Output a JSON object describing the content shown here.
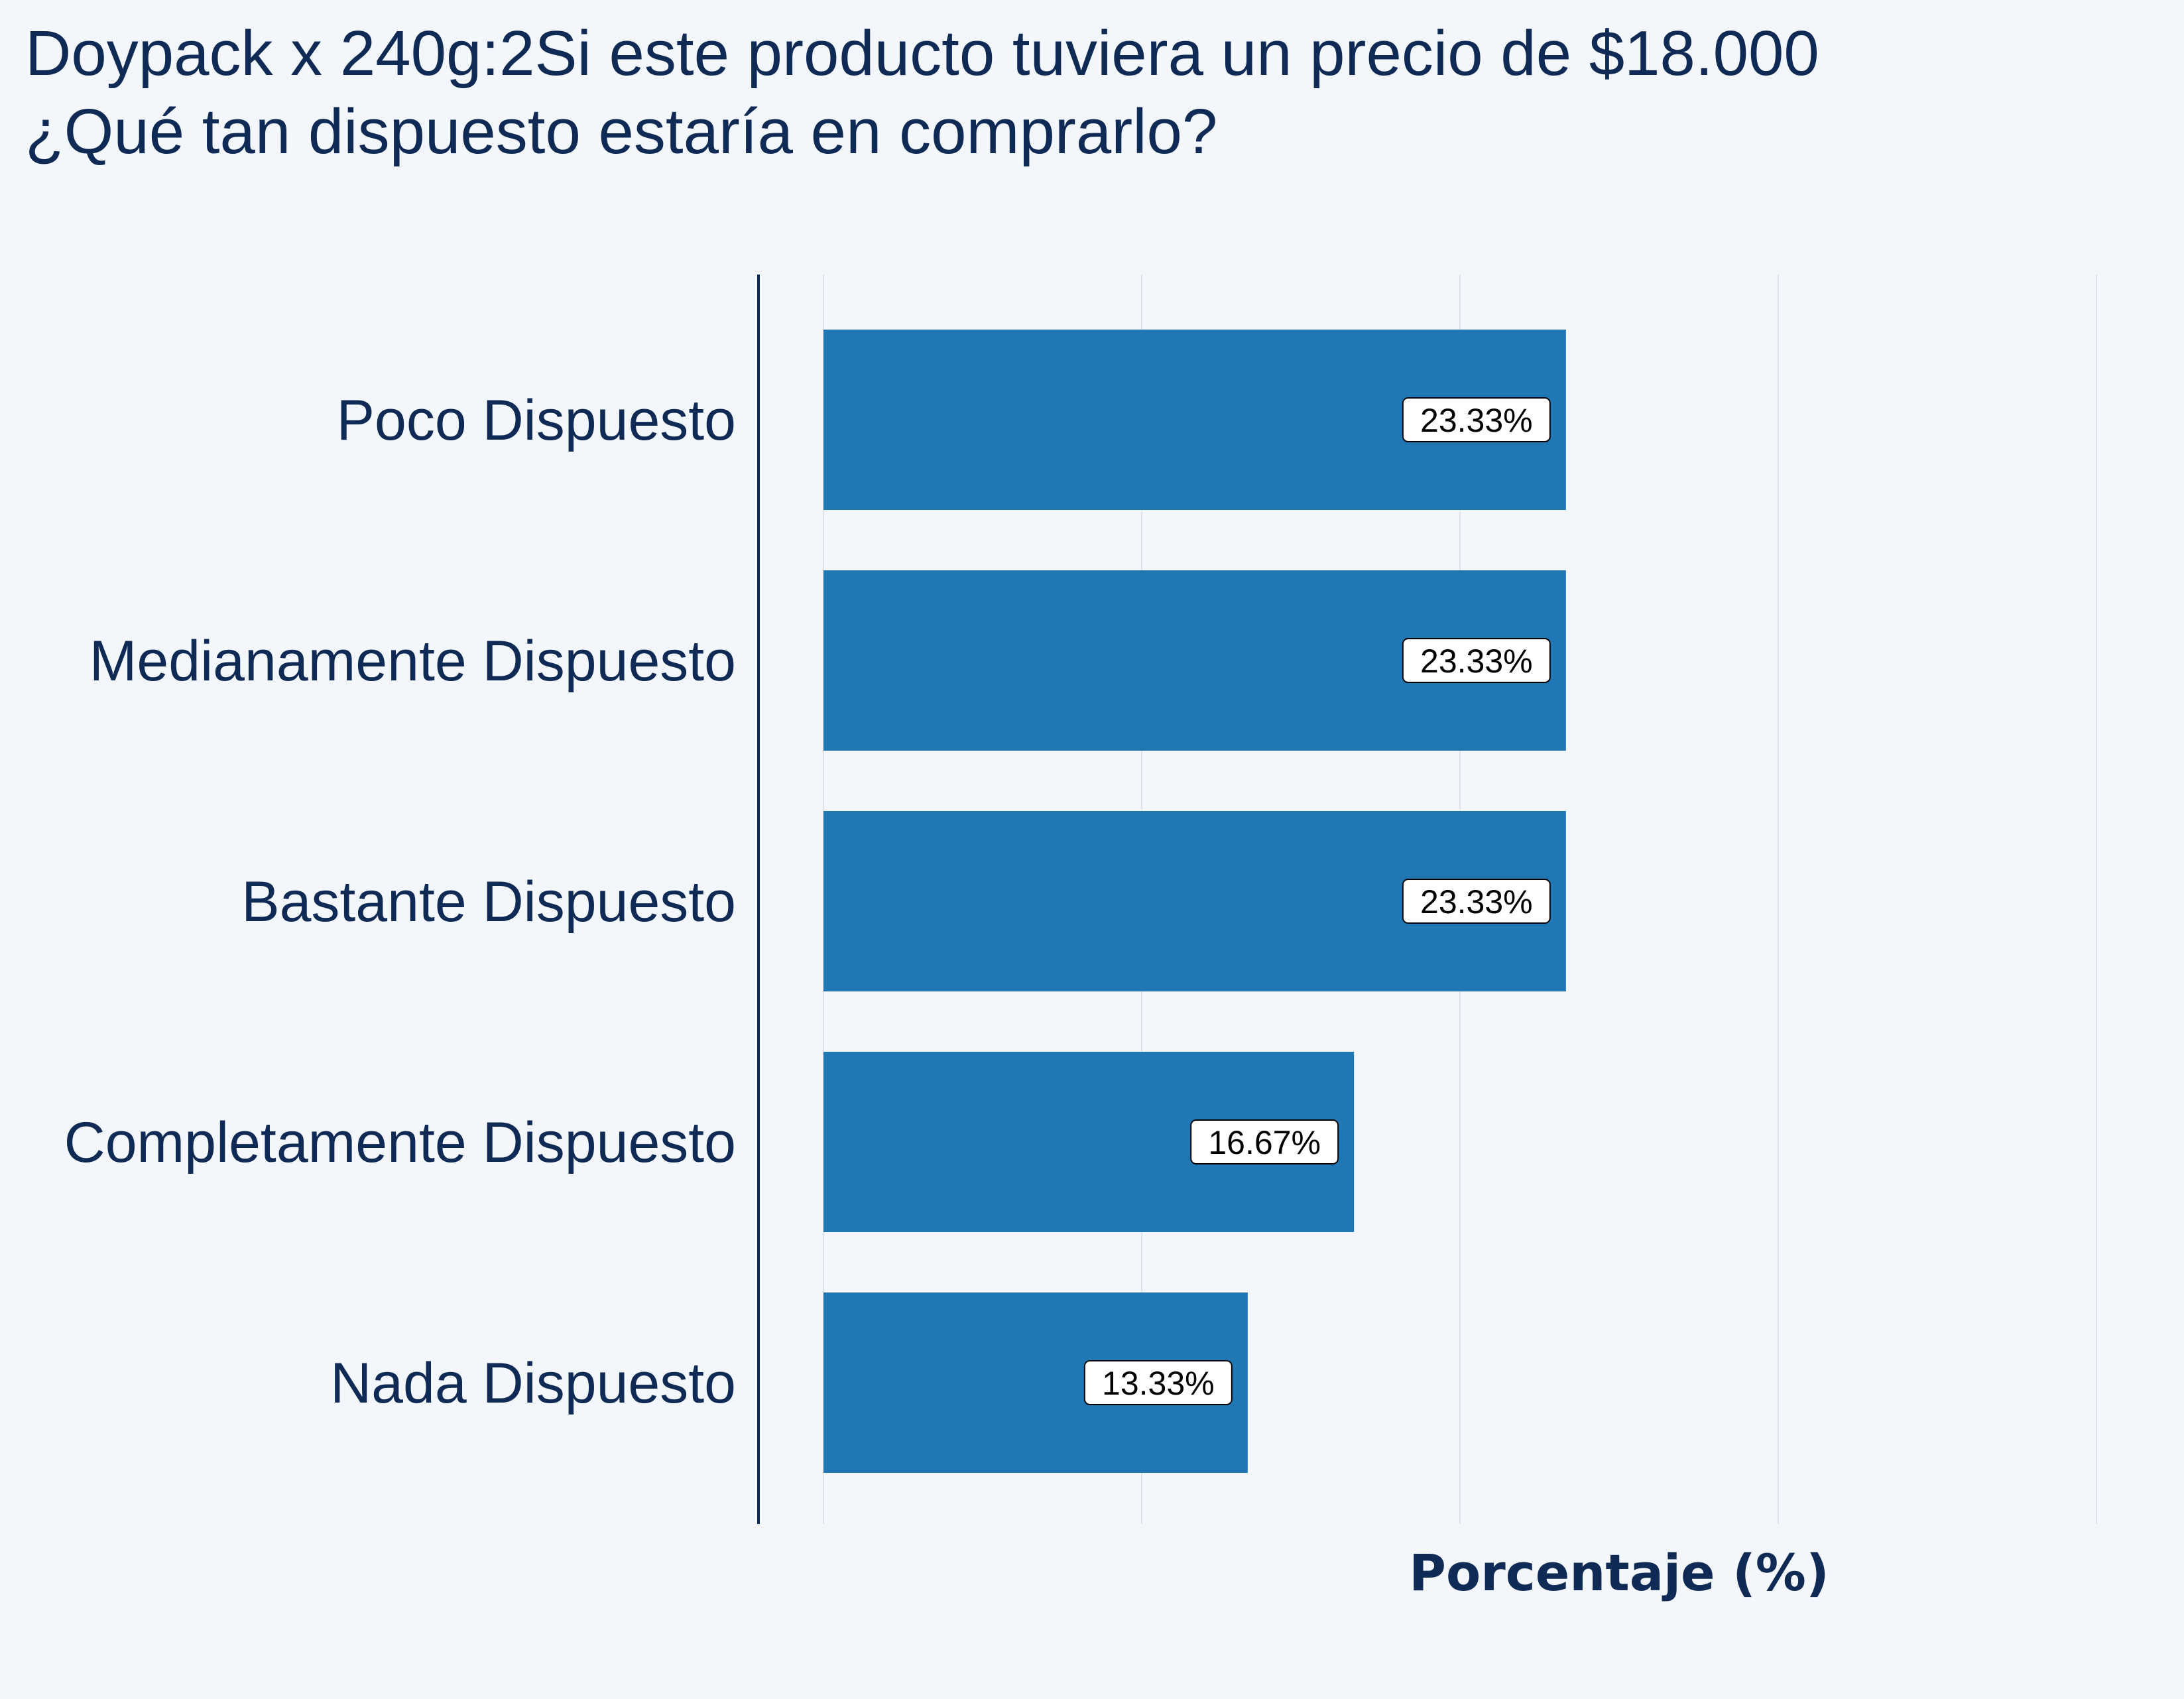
{
  "chart_data": {
    "type": "bar",
    "orientation": "horizontal",
    "title": "Doypack x 240g:2Si este producto tuviera un precio de $18.000\n¿Qué tan dispuesto estaría en comprarlo?",
    "categories": [
      "Poco Dispuesto",
      "Medianamente Dispuesto",
      "Bastante Dispuesto",
      "Completamente Dispuesto",
      "Nada Dispuesto"
    ],
    "values": [
      23.33,
      23.33,
      23.33,
      16.67,
      13.33
    ],
    "value_labels": [
      "23.33%",
      "23.33%",
      "23.33%",
      "16.67%",
      "13.33%"
    ],
    "xlabel": "Porcentaje (%)",
    "ylabel": "",
    "xlim": [
      0,
      40
    ],
    "x_gridlines": [
      0,
      10,
      20,
      30,
      40
    ],
    "grid": true,
    "bar_color": "#2077b4",
    "background_color": "#f3f7fb",
    "text_color": "#0f2a55"
  }
}
